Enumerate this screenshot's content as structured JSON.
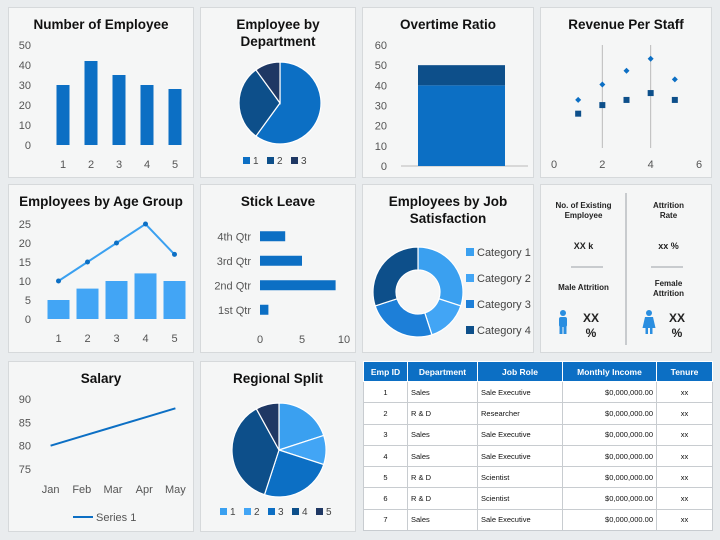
{
  "colors": {
    "primary": "#0c6fc4",
    "dark": "#0d4f8a",
    "navy": "#1f3864",
    "light": "#3aa0f0",
    "mid": "#1d7fd8",
    "accent": "#42a5f5"
  },
  "panels": {
    "employees": "Number of Employee",
    "department": [
      "Employee by",
      "Department"
    ],
    "overtime": "Overtime Ratio",
    "revenue": "Revenue Per Staff",
    "age": "Employees by Age Group",
    "leave": "Stick Leave",
    "satisfaction": [
      "Employees by Job",
      "Satisfaction"
    ],
    "salary": "Salary",
    "regional": "Regional Split"
  },
  "kpi": {
    "existing_label": [
      "No. of Existing",
      "Employee"
    ],
    "existing_value": "XX k",
    "attrition_label": [
      "Attrition",
      "Rate"
    ],
    "attrition_value": "xx %",
    "male_label": "Male Attrition",
    "male_value": "XX",
    "female_label": [
      "Female",
      "Attrition"
    ],
    "female_value": "XX",
    "pct": "%",
    "male_icon": "male-person-icon",
    "female_icon": "female-person-icon"
  },
  "table": {
    "headers": [
      "Emp ID",
      "Department",
      "Job Role",
      "Monthly Income",
      "Tenure"
    ],
    "rows": [
      [
        "1",
        "Sales",
        "Sale Executive",
        "$0,000,000.00",
        "xx"
      ],
      [
        "2",
        "R & D",
        "Researcher",
        "$0,000,000.00",
        "xx"
      ],
      [
        "3",
        "Sales",
        "Sale Executive",
        "$0,000,000.00",
        "xx"
      ],
      [
        "4",
        "Sales",
        "Sale Executive",
        "$0,000,000.00",
        "xx"
      ],
      [
        "5",
        "R & D",
        "Scientist",
        "$0,000,000.00",
        "xx"
      ],
      [
        "6",
        "R & D",
        "Scientist",
        "$0,000,000.00",
        "xx"
      ],
      [
        "7",
        "Sales",
        "Sale Executive",
        "$0,000,000.00",
        "xx"
      ]
    ]
  },
  "chart_data": [
    {
      "id": "employees",
      "type": "bar",
      "categories": [
        "1",
        "2",
        "3",
        "4",
        "5"
      ],
      "values": [
        30,
        42,
        35,
        30,
        28
      ],
      "ylim": [
        0,
        50
      ],
      "yticks": [
        0,
        10,
        20,
        30,
        40,
        50
      ],
      "grid": false
    },
    {
      "id": "department",
      "type": "pie",
      "labels": [
        "1",
        "2",
        "3"
      ],
      "values": [
        60,
        30,
        10
      ],
      "legend": "bottom"
    },
    {
      "id": "overtime",
      "type": "bar",
      "stacked": true,
      "categories": [
        ""
      ],
      "series": [
        {
          "values": [
            40
          ]
        },
        {
          "values": [
            10
          ]
        }
      ],
      "ylim": [
        0,
        60
      ],
      "yticks": [
        0,
        10,
        20,
        30,
        40,
        50,
        60
      ]
    },
    {
      "id": "revenue",
      "type": "scatter",
      "xlim": [
        0,
        6
      ],
      "xticks": [
        0,
        2,
        4,
        6
      ],
      "series": [
        {
          "marker": "square",
          "x": [
            1,
            2,
            3,
            4,
            5
          ],
          "y": [
            2,
            2.5,
            2.8,
            3.2,
            2.8
          ]
        },
        {
          "marker": "diamond",
          "x": [
            1,
            2,
            3,
            4,
            5
          ],
          "y": [
            2.8,
            3.7,
            4.5,
            5.2,
            4.0
          ]
        }
      ]
    },
    {
      "id": "age",
      "type": "bar",
      "categories": [
        "1",
        "2",
        "3",
        "4",
        "5"
      ],
      "values": [
        5,
        8,
        10,
        12,
        10
      ],
      "line_values": [
        10,
        15,
        20,
        25,
        17
      ],
      "ylim": [
        0,
        25
      ],
      "yticks": [
        0,
        5,
        10,
        15,
        20,
        25
      ]
    },
    {
      "id": "leave",
      "type": "bar",
      "orientation": "horizontal",
      "categories": [
        "4th Qtr",
        "3rd Qtr",
        "2nd Qtr",
        "1st Qtr"
      ],
      "values": [
        3,
        5,
        9,
        1
      ],
      "xlim": [
        0,
        10
      ],
      "xticks": [
        0,
        5,
        10
      ]
    },
    {
      "id": "satisfaction",
      "type": "pie",
      "donut": true,
      "labels": [
        "Category 1",
        "Category 2",
        "Category 3",
        "Category 4"
      ],
      "values": [
        30,
        15,
        25,
        30
      ],
      "legend": "right"
    },
    {
      "id": "salary",
      "type": "line",
      "categories": [
        "Jan",
        "Feb",
        "Mar",
        "Apr",
        "May"
      ],
      "series": [
        {
          "name": "Series 1",
          "values": [
            80,
            82,
            84,
            86,
            88
          ]
        }
      ],
      "ylim": [
        75,
        90
      ],
      "yticks": [
        75,
        80,
        85,
        90
      ],
      "legend": "bottom"
    },
    {
      "id": "regional",
      "type": "pie",
      "labels": [
        "1",
        "2",
        "3",
        "4",
        "5"
      ],
      "values": [
        20,
        10,
        25,
        37,
        8
      ],
      "legend": "bottom"
    }
  ]
}
